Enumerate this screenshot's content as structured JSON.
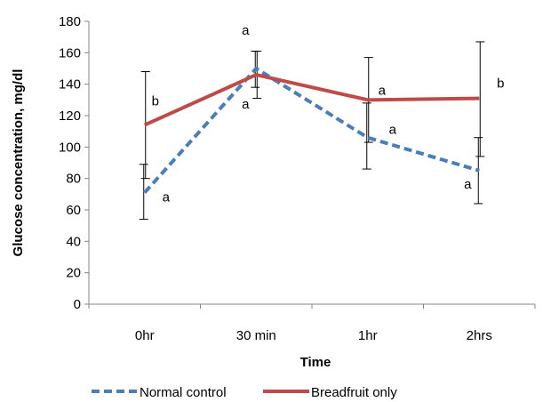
{
  "chart_data": {
    "type": "line",
    "xlabel": "Time",
    "ylabel": "Glucose concentration, mg/dl",
    "categories": [
      "0hr",
      "30 min",
      "1hr",
      "2hrs"
    ],
    "ylim": [
      0,
      180
    ],
    "yticks": [
      0,
      20,
      40,
      60,
      80,
      100,
      120,
      140,
      160,
      180
    ],
    "grid": false,
    "legend_position": "bottom",
    "series": [
      {
        "name": "Normal control",
        "color": "#4A7EBB",
        "style": "dashed",
        "values": [
          71,
          150,
          106,
          85
        ],
        "error_low": [
          54,
          138,
          86,
          64
        ],
        "error_high": [
          89,
          161,
          128,
          106
        ],
        "labels": [
          "a",
          "a",
          "a",
          "a"
        ]
      },
      {
        "name": "Breadfruit only",
        "color": "#BE4B48",
        "style": "solid",
        "values": [
          114,
          146,
          130,
          131
        ],
        "error_low": [
          80,
          131,
          103,
          94
        ],
        "error_high": [
          148,
          161,
          157,
          167
        ],
        "labels": [
          "b",
          "a",
          "a",
          "b"
        ]
      }
    ]
  }
}
